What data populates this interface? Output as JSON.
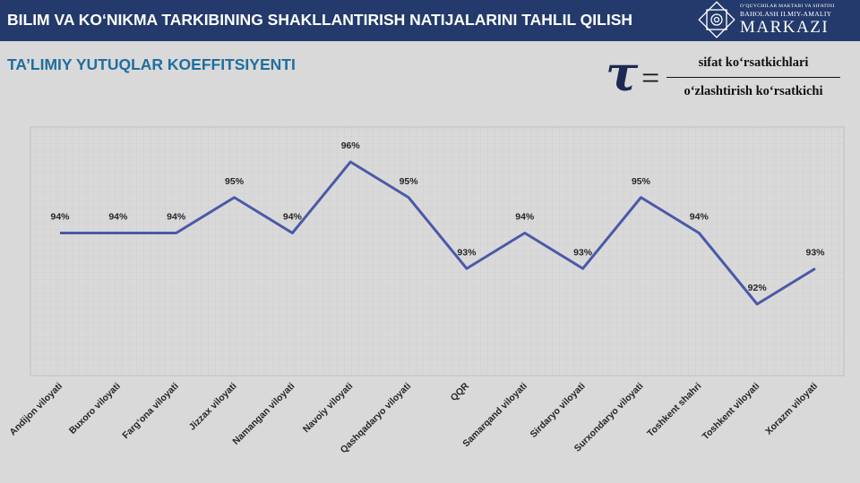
{
  "header": {
    "title": "BILIM VA KO‘NIKMA TARKIBINING SHAKLLANTIRISH NATIJALARINI TAHLIL QILISH",
    "logo_line1": "O‘QUVCHILAR MAKTABI VA SIFATINI",
    "logo_line2": "BAHOLASH ILMIY-AMALIY",
    "logo_name": "MARKAZI"
  },
  "subtitle": "TA’LIMIY YUTUQLAR KOEFFITSIYENTI",
  "formula": {
    "symbol": "τ",
    "equals": "=",
    "numerator": "sifat ko‘rsatkichlari",
    "denominator": "o‘zlashtirish ko‘rsatkichi"
  },
  "colors": {
    "header_bg": "#243a6d",
    "line": "#4a5aa8",
    "subtitle": "#1f6e9e"
  },
  "chart_data": {
    "type": "line",
    "categories": [
      "Andijon viloyati",
      "Buxoro viloyati",
      "Farg‘ona viloyati",
      "Jizzax viloyati",
      "Namangan viloyati",
      "Navoiy viloyati",
      "Qashqadaryo viloyati",
      "QQR",
      "Samarqand viloyati",
      "Sirdaryo viloyati",
      "Surxondaryo viloyati",
      "Toshkent shahri",
      "Toshkent viloyati",
      "Xorazm viloyati"
    ],
    "values": [
      0.94,
      0.94,
      0.94,
      0.95,
      0.94,
      0.96,
      0.95,
      0.93,
      0.94,
      0.93,
      0.95,
      0.94,
      0.92,
      0.93
    ],
    "data_labels": [
      "94%",
      "94%",
      "94%",
      "95%",
      "94%",
      "96%",
      "95%",
      "93%",
      "94%",
      "93%",
      "95%",
      "94%",
      "92%",
      "93%"
    ],
    "title": "TA’LIMIY YUTUQLAR KOEFFITSIYENTI",
    "xlabel": "",
    "ylabel": "",
    "grid": true
  }
}
